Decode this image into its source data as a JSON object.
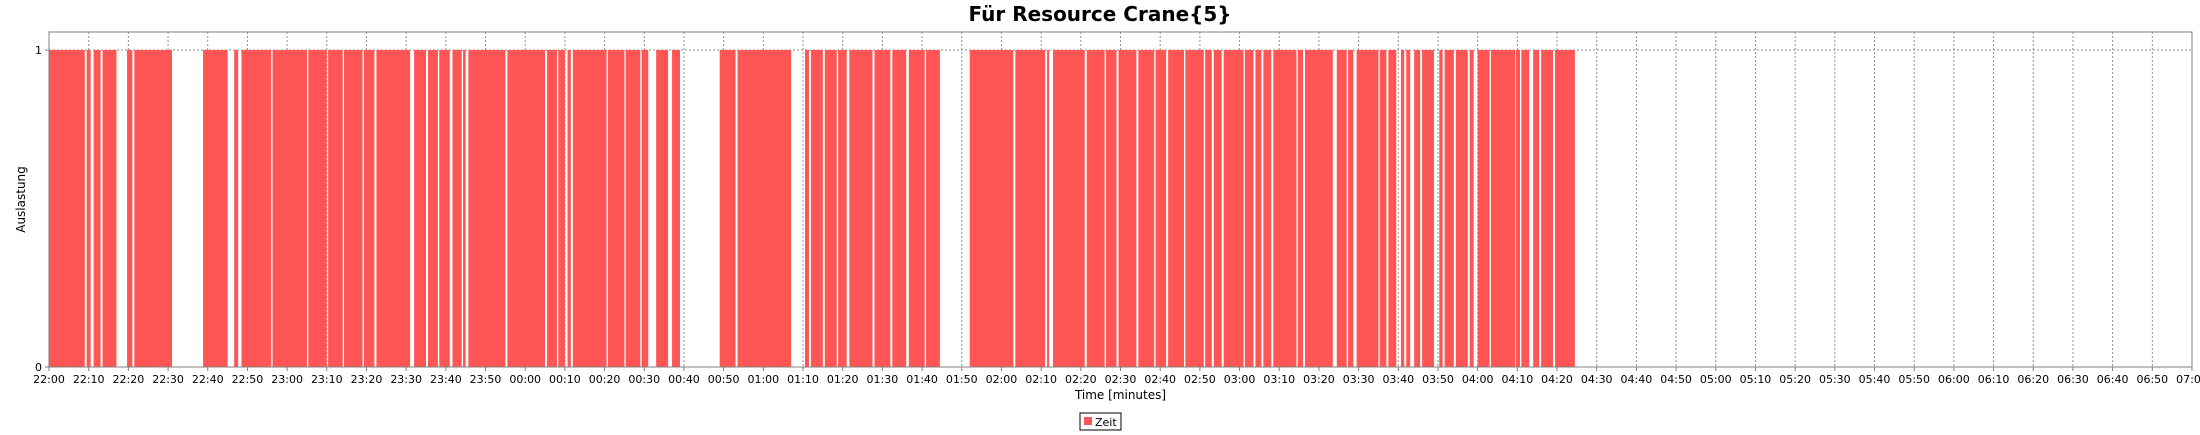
{
  "chart_data": {
    "type": "area",
    "title": "Für Resource Crane{5}",
    "xlabel": "Time [minutes]",
    "ylabel": "Auslastung",
    "xlim": [
      "22:00",
      "07:00"
    ],
    "ylim": [
      0,
      1
    ],
    "y_ticks": [
      "0",
      "1"
    ],
    "x_ticks": [
      "22:00",
      "22:10",
      "22:20",
      "22:30",
      "22:40",
      "22:50",
      "23:00",
      "23:10",
      "23:20",
      "23:30",
      "23:40",
      "23:50",
      "00:00",
      "00:10",
      "00:20",
      "00:30",
      "00:40",
      "00:50",
      "01:00",
      "01:10",
      "01:20",
      "01:30",
      "01:40",
      "01:50",
      "02:00",
      "02:10",
      "02:20",
      "02:30",
      "02:40",
      "02:50",
      "03:00",
      "03:10",
      "03:20",
      "03:30",
      "03:40",
      "03:50",
      "04:00",
      "04:10",
      "04:20",
      "04:30",
      "04:40",
      "04:50",
      "05:00",
      "05:10",
      "05:20",
      "05:30",
      "05:40",
      "05:50",
      "06:00",
      "06:10",
      "06:20",
      "06:30",
      "06:40",
      "06:50",
      "07:00"
    ],
    "grid": true,
    "legend_position": "bottom",
    "series": [
      {
        "name": "Zeit",
        "color": "#ff5555",
        "value": 1,
        "busy_intervals": [
          [
            "22:00",
            "22:09"
          ],
          [
            "22:09:30",
            "22:10:30"
          ],
          [
            "22:11:15",
            "22:13"
          ],
          [
            "22:13:30",
            "22:17"
          ],
          [
            "22:19:40",
            "22:21"
          ],
          [
            "22:21:30",
            "22:31"
          ],
          [
            "22:38:50",
            "22:45"
          ],
          [
            "22:46:40",
            "22:47:40"
          ],
          [
            "22:48:30",
            "22:56"
          ],
          [
            "22:56:20",
            "23:05"
          ],
          [
            "23:05:20",
            "23:10"
          ],
          [
            "23:10:20",
            "23:14"
          ],
          [
            "23:14:20",
            "23:19"
          ],
          [
            "23:19:20",
            "23:22"
          ],
          [
            "23:22:30",
            "23:31"
          ],
          [
            "23:32",
            "23:35"
          ],
          [
            "23:35:30",
            "23:38"
          ],
          [
            "23:38:20",
            "23:41"
          ],
          [
            "23:41:40",
            "23:44"
          ],
          [
            "23:44:20",
            "23:45"
          ],
          [
            "23:45:40",
            "23:55"
          ],
          [
            "23:55:30",
            "00:05"
          ],
          [
            "00:05:30",
            "00:08"
          ],
          [
            "00:08:20",
            "00:10"
          ],
          [
            "00:10:40",
            "00:11:30"
          ],
          [
            "00:12",
            "00:20:30"
          ],
          [
            "00:20:50",
            "00:25"
          ],
          [
            "00:25:20",
            "00:29"
          ],
          [
            "00:29:20",
            "00:31"
          ],
          [
            "00:33",
            "00:36"
          ],
          [
            "00:37",
            "00:39"
          ],
          [
            "00:49",
            "00:53"
          ],
          [
            "00:53:30",
            "01:07"
          ],
          [
            "01:10:30",
            "01:11:30"
          ],
          [
            "01:12",
            "01:15"
          ],
          [
            "01:15:30",
            "01:18:30"
          ],
          [
            "01:18:50",
            "01:21"
          ],
          [
            "01:21:40",
            "01:27:30"
          ],
          [
            "01:28",
            "01:32"
          ],
          [
            "01:32:30",
            "01:36"
          ],
          [
            "01:36:40",
            "01:40:40"
          ],
          [
            "01:41",
            "01:44:30"
          ],
          [
            "01:52",
            "02:03"
          ],
          [
            "02:03:30",
            "02:11"
          ],
          [
            "02:11:30",
            "02:12"
          ],
          [
            "02:13",
            "02:21"
          ],
          [
            "02:21:30",
            "02:26"
          ],
          [
            "02:26:20",
            "02:29"
          ],
          [
            "02:29:30",
            "02:34"
          ],
          [
            "02:34:30",
            "02:38:30"
          ],
          [
            "02:38:50",
            "02:41:30"
          ],
          [
            "02:42",
            "02:46"
          ],
          [
            "02:46:20",
            "02:51"
          ],
          [
            "02:51:20",
            "02:53"
          ],
          [
            "02:53:30",
            "02:55:30"
          ],
          [
            "02:56",
            "03:01"
          ],
          [
            "03:01:20",
            "03:03:30"
          ],
          [
            "03:04",
            "03:05:30"
          ],
          [
            "03:06",
            "03:08"
          ],
          [
            "03:08:30",
            "03:14:20"
          ],
          [
            "03:14:40",
            "03:16"
          ],
          [
            "03:16:30",
            "03:23:30"
          ],
          [
            "03:24:30",
            "03:27"
          ],
          [
            "03:27:20",
            "03:28:40"
          ],
          [
            "03:29:30",
            "03:35"
          ],
          [
            "03:35:20",
            "03:37"
          ],
          [
            "03:37:30",
            "03:39:30"
          ],
          [
            "03:40:40",
            "03:41:30"
          ],
          [
            "03:42",
            "03:43"
          ],
          [
            "03:44",
            "03:45:30"
          ],
          [
            "03:46",
            "03:49"
          ],
          [
            "03:50:20",
            "03:51:10"
          ],
          [
            "03:51:40",
            "03:54"
          ],
          [
            "03:54:30",
            "03:57:30"
          ],
          [
            "03:58",
            "03:59"
          ],
          [
            "04:00",
            "04:03"
          ],
          [
            "04:03:20",
            "04:09:30"
          ],
          [
            "04:09:40",
            "04:10:40"
          ],
          [
            "04:11",
            "04:13"
          ],
          [
            "04:14",
            "04:15:30"
          ],
          [
            "04:16",
            "04:19"
          ],
          [
            "04:19:30",
            "04:24:30"
          ]
        ]
      }
    ]
  }
}
